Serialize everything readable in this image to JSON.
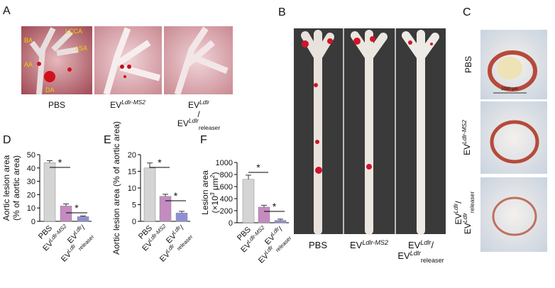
{
  "panel_letters": [
    "A",
    "B",
    "C",
    "D",
    "E",
    "F"
  ],
  "panel_a": {
    "anatomy_labels": [
      "BA",
      "LCCA",
      "LSA",
      "AA",
      "DA"
    ],
    "groups": [
      [
        [
          {
            "t": "PBS"
          }
        ]
      ],
      [
        [
          {
            "t": "EV"
          },
          {
            "t": "Ldlr-MS2",
            "s": "sup"
          }
        ]
      ],
      [
        [
          {
            "t": "EV"
          },
          {
            "t": "Ldlr",
            "s": "sup"
          }
        ],
        [
          {
            "t": "/"
          }
        ],
        [
          {
            "t": "EV"
          },
          {
            "t": "Ldlr",
            "s": "sup"
          },
          {
            "t": "releaser",
            "s": "sub"
          }
        ]
      ]
    ]
  },
  "panel_b": {
    "groups": [
      [
        [
          {
            "t": "PBS"
          }
        ]
      ],
      [
        [
          {
            "t": "EV"
          },
          {
            "t": "Ldlr-MS2",
            "s": "sup"
          }
        ]
      ],
      [
        [
          {
            "t": "EV"
          },
          {
            "t": "Ldlr",
            "s": "sup"
          },
          {
            "t": "/"
          }
        ],
        [
          {
            "t": "EV"
          },
          {
            "t": "Ldlr",
            "s": "sup"
          },
          {
            "t": "releaser",
            "s": "sub"
          }
        ]
      ]
    ]
  },
  "panel_c": {
    "scale_bar": "1000 μm",
    "groups": [
      [
        [
          {
            "t": "PBS"
          }
        ]
      ],
      [
        [
          {
            "t": "EV"
          },
          {
            "t": "Ldlr-MS2",
            "s": "sup"
          }
        ]
      ],
      [
        [
          {
            "t": "EV"
          },
          {
            "t": "Ldlr",
            "s": "sup"
          },
          {
            "t": "/"
          }
        ],
        [
          {
            "t": "EV"
          },
          {
            "t": "Ldlr",
            "s": "sup"
          },
          {
            "t": "releaser",
            "s": "sub"
          }
        ]
      ]
    ]
  },
  "chart_data": [
    {
      "type": "bar",
      "ylabel": [
        [
          {
            "t": "Aortic lesion area"
          }
        ],
        [
          {
            "t": "(% of aortic area)"
          }
        ]
      ],
      "categories": [
        [
          [
            {
              "t": "PBS"
            }
          ]
        ],
        [
          [
            {
              "t": "EV"
            },
            {
              "t": "Ldlr-MS2",
              "s": "sup"
            }
          ]
        ],
        [
          [
            {
              "t": "EV"
            },
            {
              "t": "Ldlr",
              "s": "sup"
            },
            {
              "t": "/"
            }
          ],
          [
            {
              "t": "EV"
            },
            {
              "t": "Ldlr",
              "s": "sup"
            },
            {
              "t": "releaser",
              "s": "sub"
            }
          ]
        ]
      ],
      "values": [
        44,
        11.5,
        3.5
      ],
      "errors": [
        1.5,
        1.5,
        0.5
      ],
      "colors": [
        "#d4d4d4",
        "#c48bc0",
        "#8f8fd3"
      ],
      "ylim": [
        0,
        50
      ],
      "yticks": [
        0,
        10,
        20,
        30,
        40,
        50
      ],
      "significance": [
        "*",
        "*"
      ]
    },
    {
      "type": "bar",
      "ylabel": [
        [
          {
            "t": "Aortic lesion area (% of aortic area)"
          }
        ]
      ],
      "categories": [
        [
          [
            {
              "t": "PBS"
            }
          ]
        ],
        [
          [
            {
              "t": "EV"
            },
            {
              "t": "Ldlr-MS2",
              "s": "sup"
            }
          ]
        ],
        [
          [
            {
              "t": "EV"
            },
            {
              "t": "Ldlr",
              "s": "sup"
            },
            {
              "t": "/"
            }
          ],
          [
            {
              "t": "EV"
            },
            {
              "t": "Ldlr",
              "s": "sup"
            },
            {
              "t": "releaser",
              "s": "sub"
            }
          ]
        ]
      ],
      "values": [
        16,
        7.5,
        2.5
      ],
      "errors": [
        1.5,
        0.6,
        0.5
      ],
      "colors": [
        "#d4d4d4",
        "#c48bc0",
        "#8f8fd3"
      ],
      "ylim": [
        0,
        20
      ],
      "yticks": [
        0,
        5,
        10,
        15,
        20
      ],
      "significance": [
        "*",
        "*"
      ]
    },
    {
      "type": "bar",
      "ylabel": [
        [
          {
            "t": "Lesion area"
          }
        ],
        [
          {
            "t": "(×10"
          },
          {
            "t": "3",
            "s": "sup"
          },
          {
            "t": " μm"
          },
          {
            "t": "2",
            "s": "sup"
          },
          {
            "t": ")"
          }
        ]
      ],
      "categories": [
        [
          [
            {
              "t": "PBS"
            }
          ]
        ],
        [
          [
            {
              "t": "EV"
            },
            {
              "t": "Ldlr-MS2",
              "s": "sup"
            }
          ]
        ],
        [
          [
            {
              "t": "EV"
            },
            {
              "t": "Ldlr",
              "s": "sup"
            },
            {
              "t": "/"
            }
          ],
          [
            {
              "t": "EV"
            },
            {
              "t": "Ldlr",
              "s": "sup"
            },
            {
              "t": "releaser",
              "s": "sub"
            }
          ]
        ]
      ],
      "values": [
        720,
        260,
        40
      ],
      "errors": [
        70,
        30,
        20
      ],
      "colors": [
        "#d4d4d4",
        "#c48bc0",
        "#8f8fd3"
      ],
      "ylim": [
        0,
        1000
      ],
      "yticks": [
        0,
        200,
        400,
        600,
        800,
        1000
      ],
      "significance": [
        "*",
        "*"
      ]
    }
  ]
}
